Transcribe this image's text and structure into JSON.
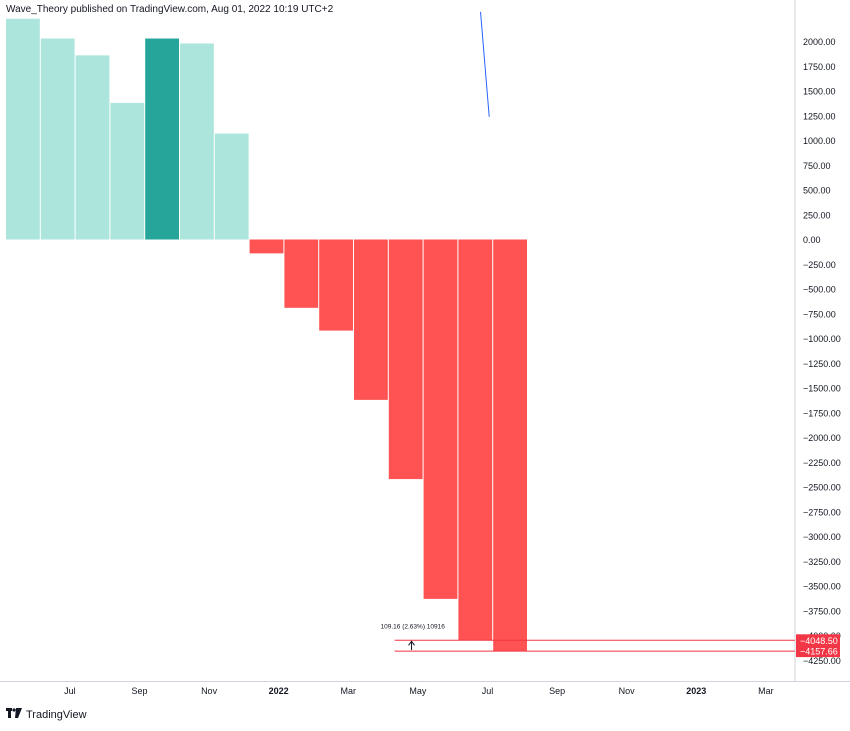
{
  "header": {
    "published_text": "Wave_Theory published on TradingView.com, Aug 01, 2022 10:19 UTC+2"
  },
  "footer": {
    "logo_icon": "tradingview-logo-icon",
    "brand": "TradingView"
  },
  "chart_data": {
    "type": "bar",
    "bar_span_months": 2,
    "x_tick_labels": [
      "Jul",
      "Sep",
      "Nov",
      "2022",
      "Mar",
      "May",
      "Jul",
      "Sep",
      "Nov",
      "2023",
      "Mar"
    ],
    "y_tick_labels": [
      "2000.00",
      "1750.00",
      "1500.00",
      "1250.00",
      "1000.00",
      "750.00",
      "500.00",
      "250.00",
      "0.00",
      "−250.00",
      "−500.00",
      "−750.00",
      "−1000.00",
      "−1250.00",
      "−1500.00",
      "−1750.00",
      "−2000.00",
      "−2250.00",
      "−2500.00",
      "−2750.00",
      "−3000.00",
      "−3250.00",
      "−3500.00",
      "−3750.00",
      "−4000.00",
      "−4250.00"
    ],
    "y_ticks": [
      2000,
      1750,
      1500,
      1250,
      1000,
      750,
      500,
      250,
      0,
      -250,
      -500,
      -750,
      -1000,
      -1250,
      -1500,
      -1750,
      -2000,
      -2250,
      -2500,
      -2750,
      -3000,
      -3250,
      -3500,
      -3750,
      -4000,
      -4250
    ],
    "ylim": [
      -4300,
      2230
    ],
    "bars": [
      {
        "x": "2021-05",
        "value": 2230,
        "color": "#ace5dc"
      },
      {
        "x": "2021-06",
        "value": 2030,
        "color": "#ace5dc"
      },
      {
        "x": "2021-07",
        "value": 1860,
        "color": "#ace5dc"
      },
      {
        "x": "2021-08",
        "value": 1380,
        "color": "#ace5dc"
      },
      {
        "x": "2021-09",
        "value": 2030,
        "color": "#26a69a"
      },
      {
        "x": "2021-10",
        "value": 1980,
        "color": "#ace5dc"
      },
      {
        "x": "2021-11",
        "value": 1070,
        "color": "#ace5dc"
      },
      {
        "x": "2021-12",
        "value": -140,
        "color": "#ff5252"
      },
      {
        "x": "2022-01",
        "value": -690,
        "color": "#ff5252"
      },
      {
        "x": "2022-02",
        "value": -920,
        "color": "#ff5252"
      },
      {
        "x": "2022-03",
        "value": -1620,
        "color": "#ff5252"
      },
      {
        "x": "2022-04",
        "value": -2420,
        "color": "#ff5252"
      },
      {
        "x": "2022-05",
        "value": -3630,
        "color": "#ff5252"
      },
      {
        "x": "2022-06",
        "value": -4048.5,
        "color": "#ff5252"
      },
      {
        "x": "2022-07",
        "value": -4157.66,
        "color": "#ff5252"
      }
    ],
    "trend_line": {
      "from": {
        "x": "2022-06",
        "y": 2300
      },
      "to": {
        "x": "2022-06-28",
        "y": 1240
      },
      "color": "#2962ff"
    },
    "measure": {
      "label": "109.16 (2.63%) 10916",
      "from_value": -4048.5,
      "to_value": -4157.66,
      "start_x": "2022-04-15"
    },
    "price_labels": [
      {
        "text": "−4048.50",
        "value": -4048.5,
        "color": "#f23645"
      },
      {
        "text": "−4157.66",
        "value": -4157.66,
        "color": "#f23645"
      }
    ],
    "colors": {
      "positive_light": "#ace5dc",
      "positive_dark": "#26a69a",
      "negative": "#ff5252",
      "axis_text": "#131722",
      "axis_line": "#d1d4dc"
    }
  }
}
